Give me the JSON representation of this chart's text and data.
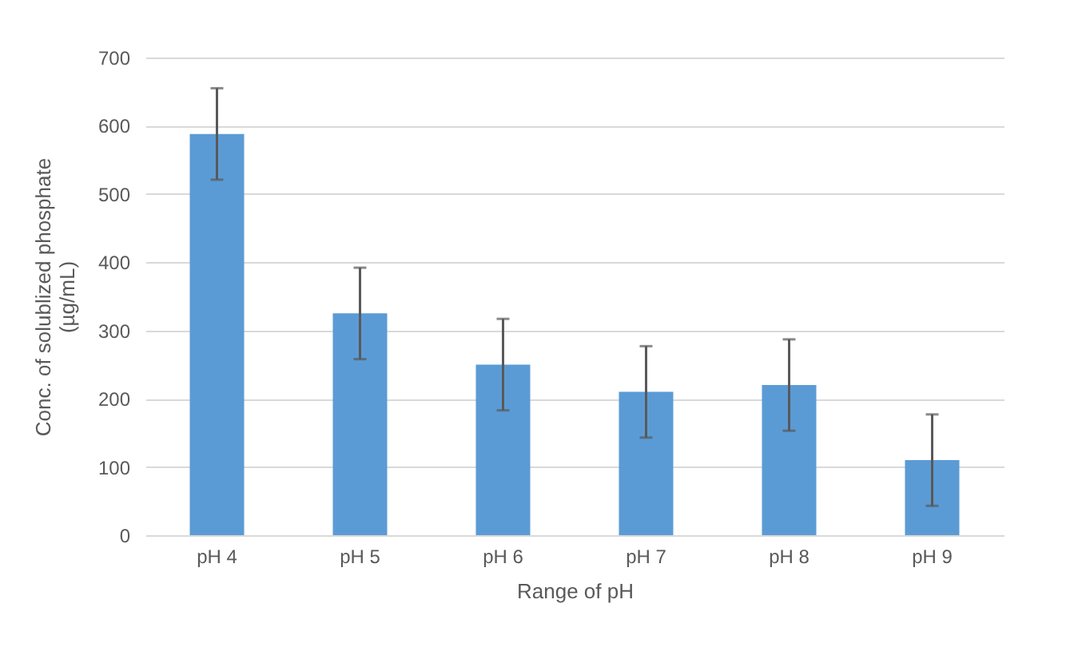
{
  "chart_data": {
    "type": "bar",
    "xlabel": "Range of pH",
    "ylabel": "Conc. of solublized phosphate\n(µg/mL)",
    "categories": [
      "pH 4",
      "pH 5",
      "pH 6",
      "pH 7",
      "pH 8",
      "pH 9"
    ],
    "values": [
      588,
      325,
      250,
      210,
      220,
      110
    ],
    "errors": [
      67,
      67,
      67,
      67,
      67,
      67
    ],
    "color": "#5b9bd5",
    "ylim": [
      0,
      700
    ],
    "yticks": [
      0,
      100,
      200,
      300,
      400,
      500,
      600,
      700
    ],
    "grid": "y"
  }
}
